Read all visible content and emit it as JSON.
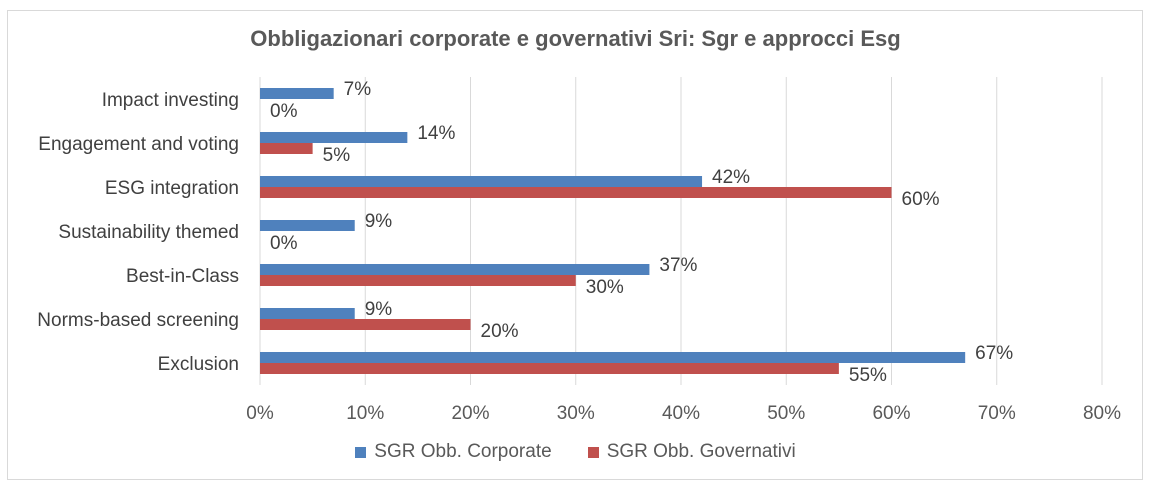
{
  "chart_data": {
    "type": "bar",
    "orientation": "horizontal",
    "title": "Obbligazionari corporate e governativi Sri: Sgr e approcci Esg",
    "categories": [
      "Impact investing",
      "Engagement and voting",
      "ESG integration",
      "Sustainability themed",
      "Best-in-Class",
      "Norms-based screening",
      "Exclusion"
    ],
    "series": [
      {
        "name": "SGR Obb. Corporate",
        "color": "#4f81bd",
        "values": [
          7,
          14,
          42,
          9,
          37,
          9,
          67
        ],
        "labels": [
          "7%",
          "14%",
          "42%",
          "9%",
          "37%",
          "9%",
          "67%"
        ]
      },
      {
        "name": "SGR Obb. Governativi",
        "color": "#c0504d",
        "values": [
          0,
          5,
          60,
          0,
          30,
          20,
          55
        ],
        "labels": [
          "0%",
          "5%",
          "60%",
          "0%",
          "30%",
          "20%",
          "55%"
        ]
      }
    ],
    "xlim": [
      0,
      80
    ],
    "xticks": [
      "0%",
      "10%",
      "20%",
      "30%",
      "40%",
      "50%",
      "60%",
      "70%",
      "80%"
    ],
    "grid": true,
    "legend_position": "bottom"
  }
}
